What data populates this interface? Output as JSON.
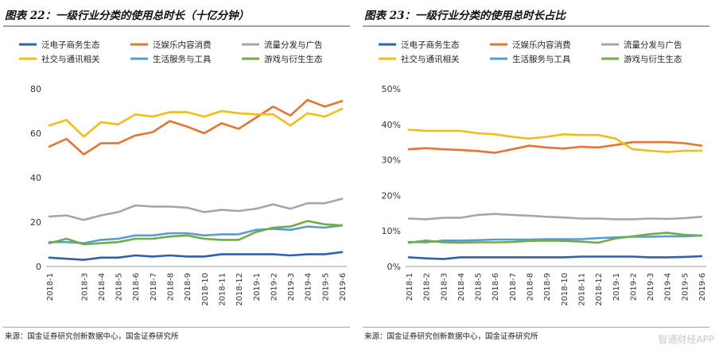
{
  "source_text": "来源：国金证券研究创新数据中心，国金证券研究所",
  "watermark": "智通财经APP",
  "chart_data": [
    {
      "id": "left",
      "type": "line",
      "title": "图表 22：一级行业分类的使用总时长（十亿分钟）",
      "ylim": [
        0,
        80
      ],
      "yticks": [
        0,
        20,
        40,
        60,
        80
      ],
      "ytick_labels": [
        "0",
        "20",
        "40",
        "60",
        "80"
      ],
      "categories": [
        "2018-1",
        "2018-2",
        "2018-3",
        "2018-4",
        "2018-5",
        "2018-6",
        "2018-7",
        "2018-8",
        "2018-9",
        "2018-10",
        "2018-11",
        "2018-12",
        "2019-1",
        "2019-2",
        "2019-3",
        "2019-4",
        "2019-5",
        "2019-6"
      ],
      "xtick_labels": [
        "2018-1",
        "2018-3",
        "2018-4",
        "2018-5",
        "2018-6",
        "2018-7",
        "2018-8",
        "2018-9",
        "2018-10",
        "2018-11",
        "2018-12",
        "2019-1",
        "2019-2",
        "2019-3",
        "2019-4",
        "2019-5",
        "2019-6"
      ],
      "series": [
        {
          "name": "泛电子商务生态",
          "color": "#2e5fb5",
          "values": [
            4,
            3.5,
            3,
            4,
            4,
            5,
            4.5,
            5,
            4.5,
            4.5,
            5.5,
            5.5,
            5.5,
            5.5,
            5,
            5.5,
            5.5,
            6.5
          ]
        },
        {
          "name": "泛娱乐内容消费",
          "color": "#e8752f",
          "values": [
            54,
            57.5,
            50.5,
            55.5,
            55.5,
            59,
            60.5,
            65.5,
            63,
            60,
            64.5,
            62,
            67,
            72,
            68,
            75,
            72,
            74.5
          ]
        },
        {
          "name": "流量分发与广告",
          "color": "#a6a6a6",
          "values": [
            22.5,
            23,
            21,
            23,
            24.5,
            27.5,
            27,
            27,
            26.5,
            24.5,
            25.5,
            25,
            26,
            28,
            26,
            28.5,
            28.5,
            30.5
          ]
        },
        {
          "name": "社交与通讯相关",
          "color": "#f5bd14",
          "values": [
            63.5,
            66,
            58.5,
            65,
            64,
            68.5,
            67.5,
            69.5,
            69.5,
            67.5,
            70,
            69,
            68.5,
            68.5,
            63.5,
            69,
            67.5,
            71
          ]
        },
        {
          "name": "生活服务与工具",
          "color": "#5b9bd5",
          "values": [
            11,
            11,
            10.5,
            12,
            12.5,
            14,
            14,
            15,
            15,
            14,
            14.5,
            14.5,
            16.5,
            17,
            16.5,
            18,
            17.5,
            18.5
          ]
        },
        {
          "name": "游戏与衍生生态",
          "color": "#70ad47",
          "values": [
            10.5,
            12.5,
            10,
            10.5,
            11,
            12.5,
            12.5,
            13.5,
            14,
            12.5,
            12,
            12,
            15.5,
            17.5,
            18,
            20.5,
            19,
            18.5
          ]
        }
      ]
    },
    {
      "id": "right",
      "type": "line",
      "title": "图表 23：一级行业分类的使用总时长占比",
      "ylim": [
        0,
        50
      ],
      "yticks": [
        0,
        10,
        20,
        30,
        40,
        50
      ],
      "ytick_labels": [
        "0%",
        "10%",
        "20%",
        "30%",
        "40%",
        "50%"
      ],
      "categories": [
        "2018-1",
        "2018-2",
        "2018-3",
        "2018-4",
        "2018-5",
        "2018-6",
        "2018-7",
        "2018-8",
        "2018-9",
        "2018-10",
        "2018-11",
        "2018-12",
        "2019-1",
        "2019-2",
        "2019-3",
        "2019-4",
        "2019-5",
        "2019-6"
      ],
      "xtick_labels": [
        "2018-1",
        "2018-2",
        "2018-3",
        "2018-4",
        "2018-5",
        "2018-6",
        "2018-7",
        "2018-8",
        "2018-9",
        "2018-10",
        "2018-11",
        "2018-12",
        "2019-1",
        "2019-2",
        "2019-3",
        "2019-4",
        "2019-5",
        "2019-6"
      ],
      "series": [
        {
          "name": "泛电子商务生态",
          "color": "#2e5fb5",
          "values": [
            2.6,
            2.3,
            2.1,
            2.6,
            2.6,
            2.6,
            2.6,
            2.6,
            2.6,
            2.6,
            2.8,
            2.8,
            2.8,
            2.8,
            2.6,
            2.6,
            2.7,
            2.9
          ]
        },
        {
          "name": "泛娱乐内容消费",
          "color": "#e8752f",
          "values": [
            33,
            33.3,
            33,
            32.8,
            32.5,
            32,
            33,
            34,
            33.5,
            33.2,
            33.7,
            33.5,
            34.2,
            35,
            35,
            35,
            34.7,
            34
          ]
        },
        {
          "name": "流量分发与广告",
          "color": "#a6a6a6",
          "values": [
            13.5,
            13.3,
            13.7,
            13.7,
            14.5,
            14.8,
            14.5,
            14.3,
            14,
            13.8,
            13.5,
            13.5,
            13.3,
            13.3,
            13.5,
            13.4,
            13.6,
            14
          ]
        },
        {
          "name": "社交与通讯相关",
          "color": "#f5bd14",
          "values": [
            38.5,
            38.2,
            38.2,
            38.2,
            37.5,
            37.2,
            36.5,
            36,
            36.5,
            37.2,
            37,
            37,
            36,
            33,
            32.6,
            32.2,
            32.6,
            32.6
          ]
        },
        {
          "name": "生活服务与工具",
          "color": "#5b9bd5",
          "values": [
            6.9,
            6.8,
            7.3,
            7.3,
            7.4,
            7.6,
            7.6,
            7.6,
            7.7,
            7.7,
            7.7,
            8,
            8.2,
            8.4,
            8.4,
            8.5,
            8.5,
            8.7
          ]
        },
        {
          "name": "游戏与衍生生态",
          "color": "#70ad47",
          "values": [
            6.7,
            7.3,
            6.8,
            6.7,
            6.8,
            6.8,
            6.9,
            7.2,
            7.3,
            7.2,
            7,
            6.7,
            7.9,
            8.5,
            9.1,
            9.5,
            8.9,
            8.7
          ]
        }
      ]
    }
  ]
}
